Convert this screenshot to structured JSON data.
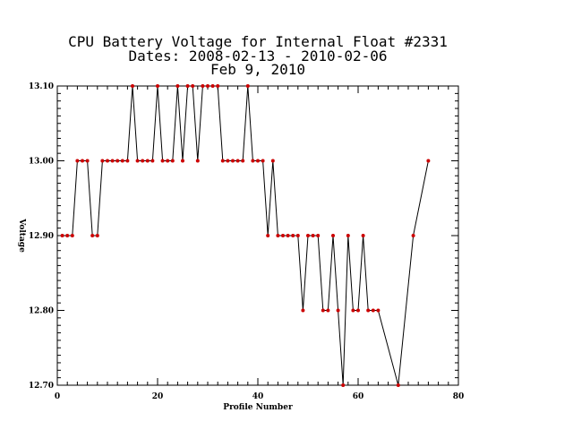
{
  "chart_data": {
    "type": "line",
    "title_lines": [
      "CPU Battery Voltage for Internal Float #2331",
      "Dates:  2008-02-13 -  2010-02-06",
      "Feb  9, 2010"
    ],
    "xlabel": "Profile Number",
    "ylabel": "Voltage",
    "xlim": [
      0,
      80
    ],
    "ylim": [
      12.7,
      13.1
    ],
    "x_ticks": [
      0,
      20,
      40,
      60,
      80
    ],
    "x_tick_labels": [
      "0",
      "20",
      "40",
      "60",
      "80"
    ],
    "y_ticks": [
      12.7,
      12.8,
      12.9,
      13.0,
      13.1
    ],
    "y_tick_labels": [
      "12.70",
      "12.80",
      "12.90",
      "13.00",
      "13.10"
    ],
    "grid": false,
    "line_color": "#000000",
    "marker_color": "#cc0000",
    "series": [
      {
        "x": [
          1,
          2,
          3,
          4,
          5,
          6,
          7,
          8,
          9,
          10,
          11,
          12,
          13,
          14,
          15,
          16,
          17,
          18,
          19,
          20,
          21,
          22,
          23,
          24,
          25,
          26,
          27,
          28,
          29,
          30,
          31,
          32,
          33,
          34,
          35,
          36,
          37,
          38,
          39,
          40,
          41,
          42,
          43,
          44,
          45,
          46,
          47,
          48,
          49,
          50,
          51,
          52,
          53,
          54,
          55,
          56,
          57,
          58,
          59,
          60,
          61,
          62,
          63,
          64,
          68,
          71,
          74
        ],
        "y": [
          12.9,
          12.9,
          12.9,
          13.0,
          13.0,
          13.0,
          12.9,
          12.9,
          13.0,
          13.0,
          13.0,
          13.0,
          13.0,
          13.0,
          13.1,
          13.0,
          13.0,
          13.0,
          13.0,
          13.1,
          13.0,
          13.0,
          13.0,
          13.1,
          13.0,
          13.1,
          13.1,
          13.0,
          13.1,
          13.1,
          13.1,
          13.1,
          13.0,
          13.0,
          13.0,
          13.0,
          13.0,
          13.1,
          13.0,
          13.0,
          13.0,
          12.9,
          13.0,
          12.9,
          12.9,
          12.9,
          12.9,
          12.9,
          12.8,
          12.9,
          12.9,
          12.9,
          12.8,
          12.8,
          12.9,
          12.8,
          12.7,
          12.9,
          12.8,
          12.8,
          12.9,
          12.8,
          12.8,
          12.8,
          12.7,
          12.9,
          13.0
        ]
      }
    ]
  }
}
